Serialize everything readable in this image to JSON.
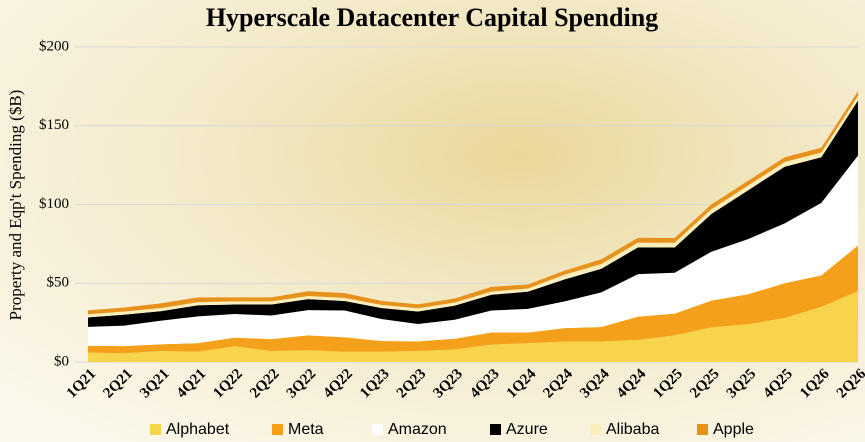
{
  "chart_data": {
    "type": "stacked_area",
    "title": "Hyperscale Datacenter Capital Spending",
    "ylabel": "Property and Eqp't Spending ($B)",
    "categories": [
      "1Q21",
      "2Q21",
      "3Q21",
      "4Q21",
      "1Q22",
      "2Q22",
      "3Q22",
      "4Q22",
      "1Q23",
      "2Q23",
      "3Q23",
      "4Q23",
      "1Q24",
      "2Q24",
      "3Q24",
      "4Q24",
      "1Q25",
      "2Q25",
      "3Q25",
      "4Q25",
      "1Q26",
      "2Q26"
    ],
    "series": [
      {
        "name": "Alphabet",
        "color": "#f7d44c",
        "values": [
          6,
          5.5,
          7,
          6.5,
          10,
          7,
          7.5,
          6.5,
          6.5,
          7,
          8,
          11,
          12,
          13,
          13,
          14,
          17,
          22,
          24,
          28,
          35,
          45
        ]
      },
      {
        "name": "Meta",
        "color": "#f5a01a",
        "values": [
          4.3,
          4.6,
          4.3,
          5.5,
          5.5,
          7.5,
          9.4,
          9.2,
          6.8,
          6.1,
          6.8,
          7.7,
          6.7,
          8.5,
          9.2,
          14.8,
          13.7,
          17,
          19,
          22,
          20,
          29
        ]
      },
      {
        "name": "Amazon",
        "color": "#ffffff",
        "values": [
          12,
          13,
          15,
          17,
          15,
          15,
          16,
          17,
          14,
          11,
          12,
          14,
          15,
          17,
          22,
          27,
          26,
          31,
          35,
          38,
          46,
          57
        ]
      },
      {
        "name": "Azure",
        "color": "#000000",
        "values": [
          6,
          7,
          6,
          7,
          6,
          7,
          7,
          6,
          7,
          8,
          9,
          10,
          11,
          14,
          15,
          17,
          16,
          24,
          31,
          36,
          29,
          35
        ]
      },
      {
        "name": "Alibaba",
        "color": "#fbeebb",
        "values": [
          2,
          2,
          2,
          2,
          2,
          2,
          2,
          2,
          2,
          2,
          2,
          2,
          2,
          3,
          3,
          3,
          3,
          3,
          3,
          3,
          3,
          3
        ]
      },
      {
        "name": "Apple",
        "color": "#e8921e",
        "values": [
          2.5,
          2.5,
          3,
          3,
          2.5,
          2.5,
          3,
          3,
          2.5,
          2.5,
          2.5,
          3,
          2.5,
          2.5,
          3,
          3,
          3,
          3,
          3,
          3,
          3,
          3
        ]
      }
    ],
    "ylim": [
      0,
      200
    ],
    "yticks": [
      {
        "value": 0,
        "label": "$0"
      },
      {
        "value": 50,
        "label": "$50"
      },
      {
        "value": 100,
        "label": "$100"
      },
      {
        "value": 150,
        "label": "$150"
      },
      {
        "value": 200,
        "label": "$200"
      }
    ],
    "grid": true,
    "legend": "bottom"
  }
}
